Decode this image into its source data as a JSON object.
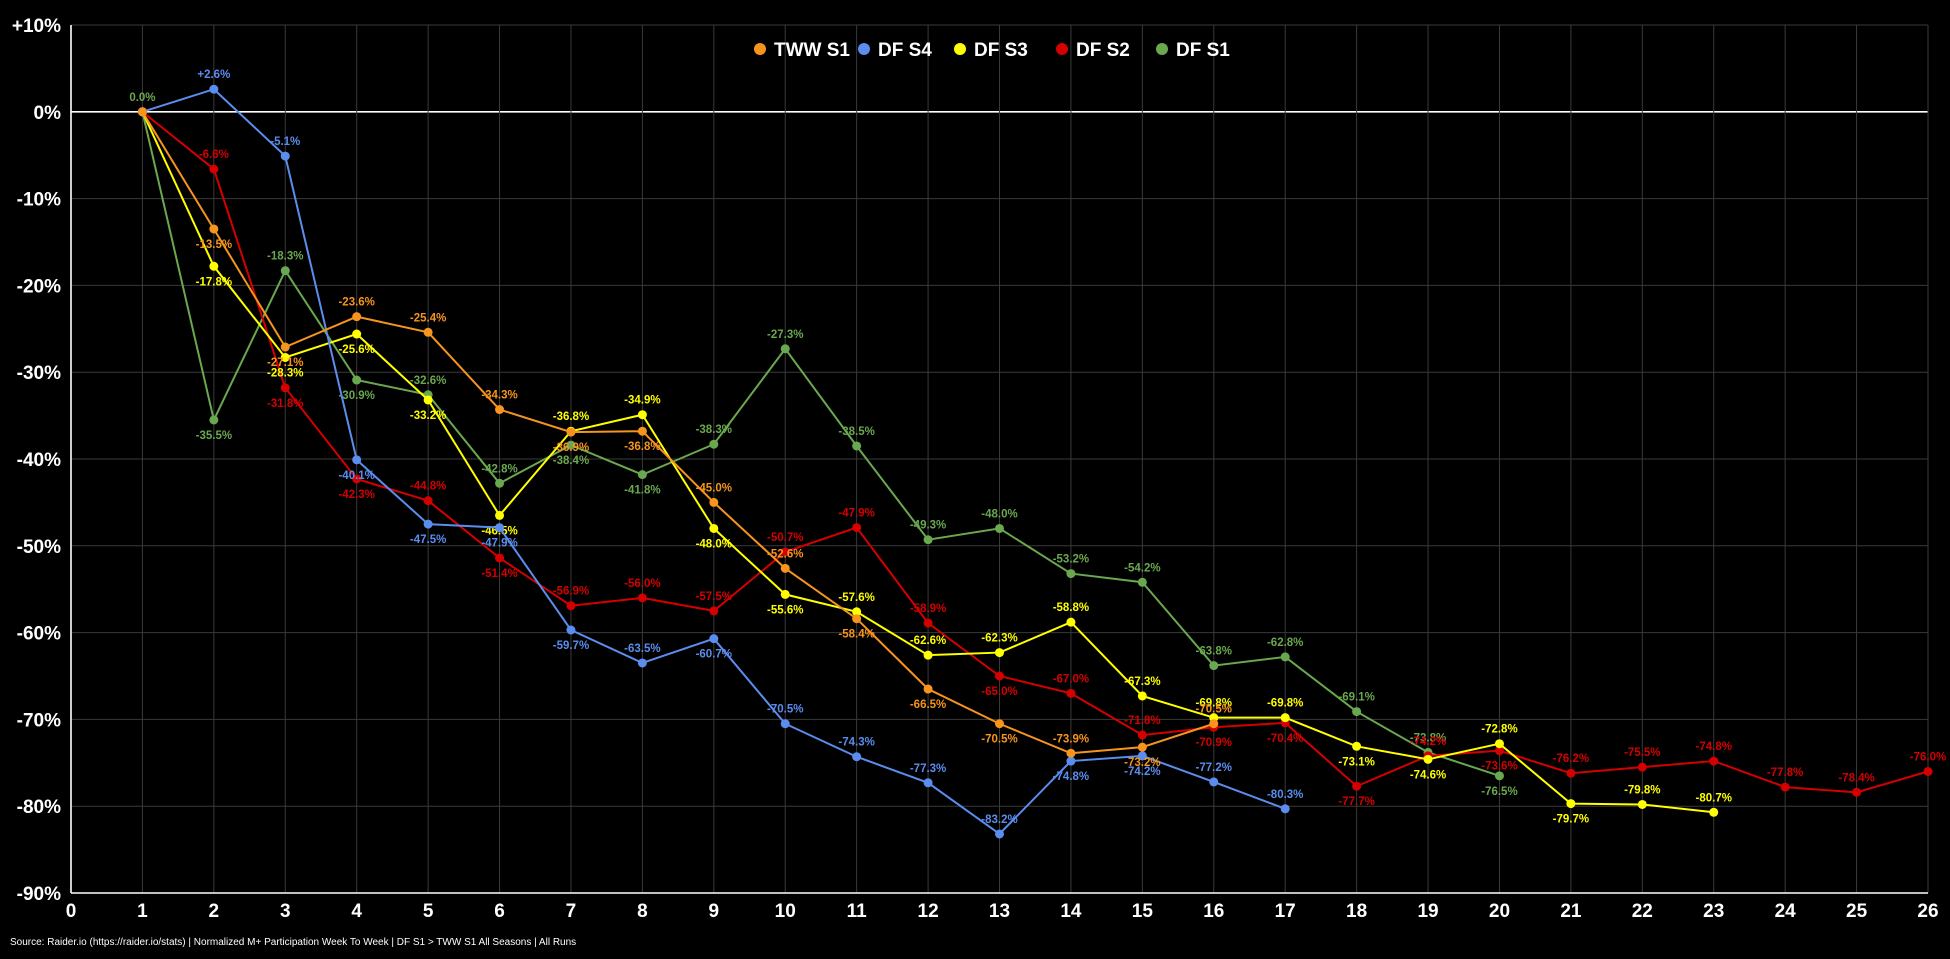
{
  "chart_data": {
    "type": "line",
    "title": "",
    "xlabel": "",
    "ylabel": "",
    "x": [
      1,
      2,
      3,
      4,
      5,
      6,
      7,
      8,
      9,
      10,
      11,
      12,
      13,
      14,
      15,
      16,
      17,
      18,
      19,
      20,
      21,
      22,
      23,
      24,
      25,
      26
    ],
    "xlim": [
      0,
      26
    ],
    "ylim": [
      -90,
      10
    ],
    "yticks": [
      10,
      0,
      -10,
      -20,
      -30,
      -40,
      -50,
      -60,
      -70,
      -80,
      -90
    ],
    "ytick_labels": [
      "+10%",
      "0%",
      "-10%",
      "-20%",
      "-30%",
      "-40%",
      "-50%",
      "-60%",
      "-70%",
      "-80%",
      "-90%"
    ],
    "xtick_labels": [
      "0",
      "1",
      "2",
      "3",
      "4",
      "5",
      "6",
      "7",
      "8",
      "9",
      "10",
      "11",
      "12",
      "13",
      "14",
      "15",
      "16",
      "17",
      "18",
      "19",
      "20",
      "21",
      "22",
      "23",
      "24",
      "25",
      "26"
    ],
    "grid": true,
    "legend": "top-center",
    "series": [
      {
        "name": "TWW S1",
        "color": "#f7941d",
        "values": [
          0,
          -13.5,
          -27.1,
          -23.6,
          -25.4,
          -34.3,
          -36.9,
          -36.8,
          -45.0,
          -52.6,
          -58.4,
          -66.5,
          -70.5,
          -73.9,
          -73.2,
          -70.5
        ],
        "labels": [
          "",
          "-13.5%",
          "-27.1%",
          "-23.6%",
          "-25.4%",
          "-34.3%",
          "-36.9%",
          "-36.8%",
          "-45.0%",
          "-52.6%",
          "-58.4%",
          "-66.5%",
          "-70.5%",
          "-73.9%",
          "-73.2%",
          "-70.5%"
        ],
        "offsets": [
          0,
          1,
          1,
          -1,
          -1,
          -1,
          1,
          1,
          -1,
          -1,
          1,
          1,
          1,
          -1,
          1,
          -1
        ]
      },
      {
        "name": "DF S4",
        "color": "#5b8def",
        "values": [
          0,
          2.6,
          -5.1,
          -40.1,
          -47.5,
          -47.9,
          -59.7,
          -63.5,
          -60.7,
          -70.5,
          -74.3,
          -77.3,
          -83.2,
          -74.8,
          -74.2,
          -77.2,
          -80.3
        ],
        "labels": [
          "",
          "+2.6%",
          "-5.1%",
          "-40.1%",
          "-47.5%",
          "-47.9%",
          "-59.7%",
          "-63.5%",
          "-60.7%",
          "-70.5%",
          "-74.3%",
          "-77.3%",
          "-83.2%",
          "-74.8%",
          "-74.2%",
          "-77.2%",
          "-80.3%"
        ],
        "offsets": [
          0,
          -1,
          -1,
          1,
          1,
          1,
          1,
          -1,
          1,
          -1,
          -1,
          -1,
          -1,
          1,
          1,
          -1,
          -1
        ]
      },
      {
        "name": "DF S3",
        "color": "#ffff00",
        "values": [
          0,
          -17.8,
          -28.3,
          -25.6,
          -33.2,
          -46.5,
          -36.8,
          -34.9,
          -48.0,
          -55.6,
          -57.6,
          -62.6,
          -62.3,
          -58.8,
          -67.3,
          -69.8,
          -69.8,
          -73.1,
          -74.6,
          -72.8,
          -79.7,
          -79.8,
          -80.7
        ],
        "labels": [
          "",
          "-17.8%",
          "-28.3%",
          "-25.6%",
          "-33.2%",
          "-46.5%",
          "-36.8%",
          "-34.9%",
          "-48.0%",
          "-55.6%",
          "-57.6%",
          "-62.6%",
          "-62.3%",
          "-58.8%",
          "-67.3%",
          "-69.8%",
          "-69.8%",
          "-73.1%",
          "-74.6%",
          "-72.8%",
          "-79.7%",
          "-79.8%",
          "-80.7%"
        ],
        "offsets": [
          0,
          1,
          1,
          1,
          1,
          1,
          -1,
          -1,
          1,
          1,
          -1,
          -1,
          -1,
          -1,
          -1,
          -1,
          -1,
          1,
          1,
          -1,
          1,
          -1,
          -1
        ]
      },
      {
        "name": "DF S2",
        "color": "#d40000",
        "values": [
          0,
          -6.6,
          -31.8,
          -42.3,
          -44.8,
          -51.4,
          -56.9,
          -56.0,
          -57.5,
          -50.7,
          -47.9,
          -58.9,
          -65.0,
          -67.0,
          -71.8,
          -70.9,
          -70.4,
          -77.7,
          -74.2,
          -73.6,
          -76.2,
          -75.5,
          -74.8,
          -77.8,
          -78.4,
          -76.0
        ],
        "labels": [
          "",
          "-6.6%",
          "-31.8%",
          "-42.3%",
          "-44.8%",
          "-51.4%",
          "-56.9%",
          "-56.0%",
          "-57.5%",
          "-50.7%",
          "-47.9%",
          "-58.9%",
          "-65.0%",
          "-67.0%",
          "-71.8%",
          "-70.9%",
          "-70.4%",
          "-77.7%",
          "-74.2%",
          "-73.6%",
          "-76.2%",
          "-75.5%",
          "-74.8%",
          "-77.8%",
          "-78.4%",
          "-76.0%"
        ],
        "offsets": [
          0,
          -1,
          1,
          1,
          -1,
          1,
          -1,
          -1,
          -1,
          -1,
          -1,
          -1,
          1,
          -1,
          -1,
          1,
          1,
          1,
          -1,
          1,
          -1,
          -1,
          -1,
          -1,
          -1,
          -1
        ]
      },
      {
        "name": "DF S1",
        "color": "#6aa84f",
        "values": [
          0,
          -35.5,
          -18.3,
          -30.9,
          -32.6,
          -42.8,
          -38.4,
          -41.8,
          -38.3,
          -27.3,
          -38.5,
          -49.3,
          -48.0,
          -53.2,
          -54.2,
          -63.8,
          -62.8,
          -69.1,
          -73.8,
          -76.5
        ],
        "labels": [
          "0.0%",
          "-35.5%",
          "-18.3%",
          "-30.9%",
          "-32.6%",
          "-42.8%",
          "-38.4%",
          "-41.8%",
          "-38.3%",
          "-27.3%",
          "-38.5%",
          "-49.3%",
          "-48.0%",
          "-53.2%",
          "-54.2%",
          "-63.8%",
          "-62.8%",
          "-69.1%",
          "-73.8%",
          "-76.5%"
        ],
        "offsets": [
          -1,
          1,
          -1,
          1,
          -1,
          -1,
          1,
          1,
          -1,
          -1,
          -1,
          -1,
          -1,
          -1,
          -1,
          -1,
          -1,
          -1,
          -1,
          1
        ]
      }
    ]
  },
  "source": "Source: Raider.io (https://raider.io/stats) | Normalized M+ Participation Week To Week | DF S1 > TWW S1 All Seasons | All Runs"
}
